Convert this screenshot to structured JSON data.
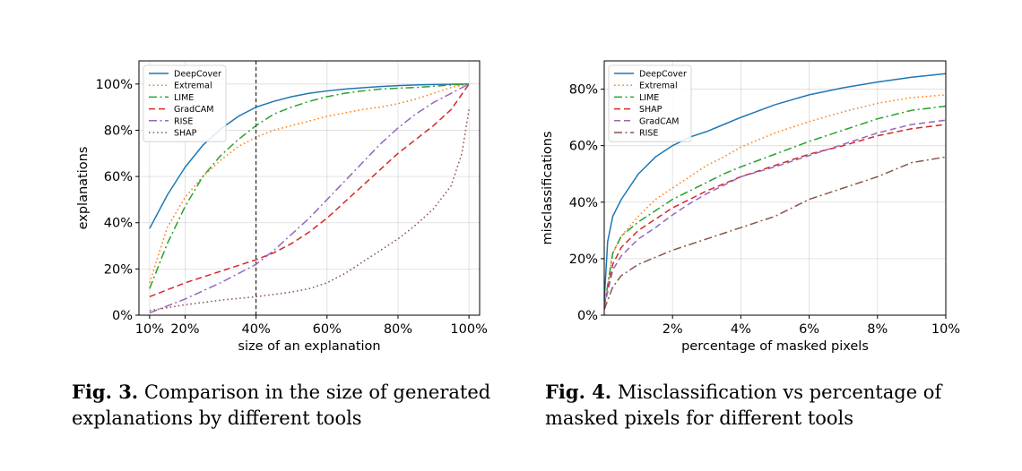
{
  "page": {
    "top_fragment": ""
  },
  "captions": [
    {
      "label": "Fig. 3.",
      "text": "Comparison in the size of generated explanations by different tools"
    },
    {
      "label": "Fig. 4.",
      "text": "Misclassification vs percentage of masked pixels for different tools"
    }
  ],
  "chart_data": [
    {
      "type": "line",
      "title": "",
      "xlabel": "size of an explanation",
      "ylabel": "explanations",
      "xlim": [
        0.07,
        1.03
      ],
      "ylim": [
        0,
        1.1
      ],
      "xticks": [
        0.1,
        0.2,
        0.4,
        0.6,
        0.8,
        1.0
      ],
      "xtick_labels": [
        "10%",
        "20%",
        "40%",
        "60%",
        "80%",
        "100%"
      ],
      "yticks": [
        0,
        0.2,
        0.4,
        0.6,
        0.8,
        1.0
      ],
      "ytick_labels": [
        "0%",
        "20%",
        "40%",
        "60%",
        "80%",
        "100%"
      ],
      "grid": true,
      "legend": "top-left",
      "vline": 0.4,
      "series": [
        {
          "name": "DeepCover",
          "color": "#1f77b4",
          "dash": "solid",
          "x": [
            0.1,
            0.15,
            0.2,
            0.25,
            0.3,
            0.35,
            0.4,
            0.45,
            0.5,
            0.55,
            0.6,
            0.65,
            0.7,
            0.75,
            0.8,
            0.85,
            0.9,
            0.95,
            1.0
          ],
          "y": [
            0.375,
            0.52,
            0.64,
            0.735,
            0.805,
            0.86,
            0.9,
            0.925,
            0.945,
            0.96,
            0.97,
            0.978,
            0.984,
            0.989,
            0.993,
            0.996,
            0.998,
            0.999,
            1.0
          ]
        },
        {
          "name": "Extremal",
          "color": "#ff7f0e",
          "dash": "dotted",
          "x": [
            0.1,
            0.15,
            0.2,
            0.25,
            0.3,
            0.35,
            0.4,
            0.45,
            0.5,
            0.55,
            0.6,
            0.65,
            0.7,
            0.75,
            0.8,
            0.85,
            0.9,
            0.95,
            1.0
          ],
          "y": [
            0.14,
            0.38,
            0.51,
            0.6,
            0.67,
            0.73,
            0.77,
            0.8,
            0.82,
            0.84,
            0.86,
            0.875,
            0.89,
            0.9,
            0.915,
            0.935,
            0.96,
            0.985,
            1.0
          ]
        },
        {
          "name": "LIME",
          "color": "#2ca02c",
          "dash": "dashdot",
          "x": [
            0.1,
            0.15,
            0.2,
            0.25,
            0.3,
            0.35,
            0.4,
            0.45,
            0.5,
            0.55,
            0.6,
            0.65,
            0.7,
            0.75,
            0.8,
            0.85,
            0.9,
            0.95,
            1.0
          ],
          "y": [
            0.115,
            0.31,
            0.47,
            0.6,
            0.69,
            0.76,
            0.82,
            0.87,
            0.9,
            0.925,
            0.945,
            0.96,
            0.97,
            0.978,
            0.982,
            0.985,
            0.99,
            0.996,
            1.0
          ]
        },
        {
          "name": "GradCAM",
          "color": "#d62728",
          "dash": "dashed",
          "x": [
            0.1,
            0.2,
            0.3,
            0.4,
            0.45,
            0.5,
            0.55,
            0.6,
            0.65,
            0.7,
            0.75,
            0.8,
            0.85,
            0.9,
            0.95,
            1.0
          ],
          "y": [
            0.08,
            0.14,
            0.19,
            0.24,
            0.27,
            0.31,
            0.36,
            0.42,
            0.49,
            0.56,
            0.63,
            0.7,
            0.76,
            0.82,
            0.89,
            1.0
          ]
        },
        {
          "name": "RISE",
          "color": "#9467bd",
          "dash": "dashdot",
          "x": [
            0.1,
            0.2,
            0.3,
            0.4,
            0.45,
            0.5,
            0.55,
            0.6,
            0.65,
            0.7,
            0.75,
            0.8,
            0.85,
            0.9,
            0.95,
            1.0
          ],
          "y": [
            0.01,
            0.07,
            0.14,
            0.22,
            0.28,
            0.35,
            0.42,
            0.5,
            0.58,
            0.66,
            0.74,
            0.81,
            0.87,
            0.92,
            0.96,
            1.0
          ]
        },
        {
          "name": "SHAP",
          "color": "#8c564b",
          "dash": "dotted",
          "x": [
            0.1,
            0.2,
            0.3,
            0.4,
            0.5,
            0.55,
            0.6,
            0.65,
            0.7,
            0.75,
            0.8,
            0.85,
            0.9,
            0.95,
            0.98,
            1.0
          ],
          "y": [
            0.02,
            0.045,
            0.065,
            0.08,
            0.1,
            0.115,
            0.14,
            0.18,
            0.23,
            0.28,
            0.33,
            0.39,
            0.46,
            0.56,
            0.7,
            0.89
          ]
        }
      ]
    },
    {
      "type": "line",
      "title": "",
      "xlabel": "percentage of masked pixels",
      "ylabel": "misclassifications",
      "xlim": [
        0,
        10
      ],
      "ylim": [
        0,
        0.9
      ],
      "xticks": [
        2,
        4,
        6,
        8,
        10
      ],
      "xtick_labels": [
        "2%",
        "4%",
        "6%",
        "8%",
        "10%"
      ],
      "yticks": [
        0,
        0.2,
        0.4,
        0.6,
        0.8
      ],
      "ytick_labels": [
        "0%",
        "20%",
        "40%",
        "60%",
        "80%"
      ],
      "grid": true,
      "legend": "top-left",
      "series": [
        {
          "name": "DeepCover",
          "color": "#1f77b4",
          "dash": "solid",
          "x": [
            0,
            0.1,
            0.25,
            0.5,
            1,
            1.5,
            2,
            2.5,
            3,
            3.5,
            4,
            5,
            6,
            7,
            8,
            9,
            10
          ],
          "y": [
            0.05,
            0.26,
            0.35,
            0.41,
            0.5,
            0.56,
            0.6,
            0.63,
            0.65,
            0.675,
            0.7,
            0.745,
            0.78,
            0.805,
            0.825,
            0.842,
            0.855
          ]
        },
        {
          "name": "Extremal",
          "color": "#ff7f0e",
          "dash": "dotted",
          "x": [
            0,
            0.25,
            0.5,
            1,
            1.5,
            2,
            2.5,
            3,
            3.5,
            4,
            5,
            6,
            7,
            8,
            9,
            10
          ],
          "y": [
            0.03,
            0.22,
            0.28,
            0.35,
            0.41,
            0.45,
            0.49,
            0.53,
            0.56,
            0.595,
            0.645,
            0.685,
            0.72,
            0.75,
            0.77,
            0.78
          ]
        },
        {
          "name": "LIME",
          "color": "#2ca02c",
          "dash": "dashdot",
          "x": [
            0,
            0.25,
            0.5,
            1,
            1.5,
            2,
            2.5,
            3,
            3.5,
            4,
            5,
            6,
            7,
            8,
            9,
            10
          ],
          "y": [
            0.03,
            0.22,
            0.28,
            0.33,
            0.37,
            0.41,
            0.44,
            0.47,
            0.5,
            0.525,
            0.57,
            0.615,
            0.655,
            0.695,
            0.725,
            0.74
          ]
        },
        {
          "name": "SHAP",
          "color": "#d62728",
          "dash": "dashed",
          "x": [
            0,
            0.25,
            0.5,
            1,
            1.5,
            2,
            2.5,
            3,
            3.5,
            4,
            5,
            6,
            7,
            8,
            9,
            10
          ],
          "y": [
            0.03,
            0.18,
            0.24,
            0.3,
            0.34,
            0.38,
            0.41,
            0.44,
            0.465,
            0.49,
            0.53,
            0.57,
            0.6,
            0.635,
            0.66,
            0.675
          ]
        },
        {
          "name": "GradCAM",
          "color": "#9467bd",
          "dash": "dashed",
          "x": [
            0,
            0.25,
            0.5,
            1,
            1.5,
            2,
            2.5,
            3,
            3.5,
            4,
            5,
            6,
            7,
            8,
            9,
            10
          ],
          "y": [
            0.03,
            0.16,
            0.21,
            0.27,
            0.31,
            0.355,
            0.395,
            0.43,
            0.46,
            0.49,
            0.525,
            0.565,
            0.605,
            0.645,
            0.675,
            0.69
          ]
        },
        {
          "name": "RISE",
          "color": "#8c564b",
          "dash": "dashdot",
          "x": [
            0,
            0.25,
            0.5,
            1,
            1.5,
            2,
            2.5,
            3,
            3.5,
            4,
            5,
            6,
            7,
            8,
            9,
            10
          ],
          "y": [
            0.02,
            0.1,
            0.14,
            0.18,
            0.205,
            0.23,
            0.25,
            0.27,
            0.29,
            0.31,
            0.35,
            0.41,
            0.45,
            0.49,
            0.54,
            0.56
          ]
        }
      ]
    }
  ]
}
